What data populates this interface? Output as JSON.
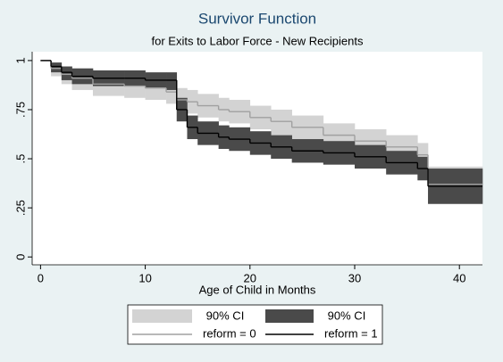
{
  "chart_data": {
    "type": "step",
    "title": "Survivor Function",
    "subtitle": "for Exits to Labor Force - New Recipients",
    "x_label": "Age of Child in Months",
    "x": [
      0,
      1,
      2,
      3,
      5,
      8,
      10,
      12,
      13,
      14,
      15,
      17,
      18,
      20,
      22,
      24,
      27,
      30,
      33,
      36,
      37
    ],
    "xlim": [
      -0.8,
      42.2
    ],
    "xticks": [
      0,
      10,
      20,
      30,
      40
    ],
    "ylim": [
      -0.04,
      1.045
    ],
    "yticks": [
      {
        "value": 0,
        "label": "0"
      },
      {
        "value": 0.25,
        "label": ".25"
      },
      {
        "value": 0.5,
        "label": ".5"
      },
      {
        "value": 0.75,
        "label": ".75"
      },
      {
        "value": 1,
        "label": "1"
      }
    ],
    "bands": [
      {
        "name": "90% CI",
        "color": "#d3d3d3",
        "lower": [
          1,
          0.92,
          0.88,
          0.85,
          0.82,
          0.81,
          0.8,
          0.78,
          0.74,
          0.73,
          0.71,
          0.69,
          0.68,
          0.65,
          0.62,
          0.59,
          0.56,
          0.53,
          0.5,
          0.46,
          0.27
        ],
        "upper": [
          1,
          0.99,
          0.97,
          0.96,
          0.94,
          0.93,
          0.92,
          0.9,
          0.86,
          0.85,
          0.83,
          0.81,
          0.8,
          0.77,
          0.75,
          0.72,
          0.68,
          0.65,
          0.62,
          0.58,
          0.46
        ]
      },
      {
        "name": "90% CI",
        "color": "#4a4a4a",
        "lower": [
          1,
          0.94,
          0.9,
          0.88,
          0.87,
          0.87,
          0.86,
          0.85,
          0.69,
          0.6,
          0.57,
          0.55,
          0.54,
          0.52,
          0.5,
          0.48,
          0.47,
          0.45,
          0.42,
          0.39,
          0.27
        ],
        "upper": [
          1,
          0.99,
          0.97,
          0.96,
          0.95,
          0.95,
          0.94,
          0.94,
          0.81,
          0.72,
          0.69,
          0.67,
          0.66,
          0.64,
          0.62,
          0.6,
          0.59,
          0.57,
          0.54,
          0.51,
          0.45
        ]
      }
    ],
    "series": [
      {
        "name": "reform = 0",
        "color": "#a0a0a0",
        "values": [
          1,
          0.96,
          0.93,
          0.91,
          0.88,
          0.87,
          0.86,
          0.84,
          0.8,
          0.79,
          0.77,
          0.75,
          0.74,
          0.71,
          0.69,
          0.66,
          0.62,
          0.59,
          0.56,
          0.52,
          0.37
        ]
      },
      {
        "name": "reform = 1",
        "color": "#000000",
        "values": [
          1,
          0.97,
          0.94,
          0.92,
          0.91,
          0.91,
          0.9,
          0.9,
          0.75,
          0.66,
          0.63,
          0.61,
          0.6,
          0.58,
          0.56,
          0.54,
          0.53,
          0.51,
          0.48,
          0.45,
          0.36
        ]
      }
    ]
  }
}
